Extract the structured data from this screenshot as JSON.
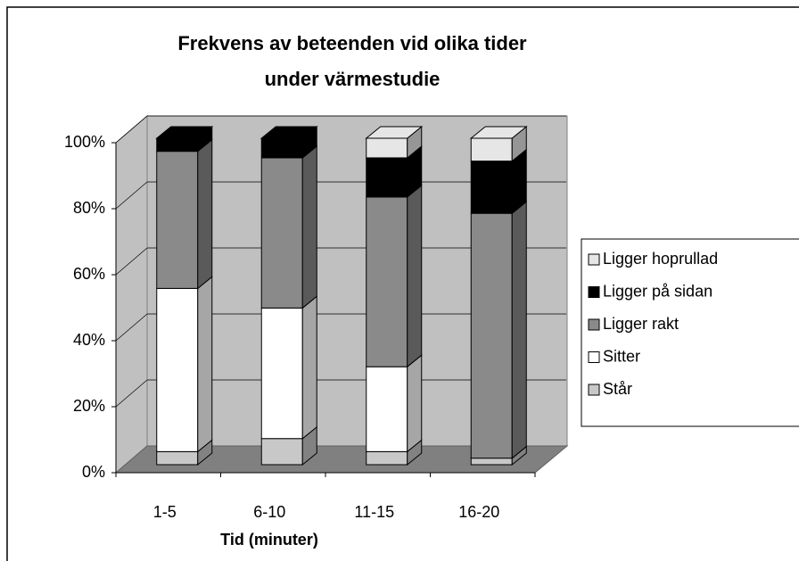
{
  "chart_data": {
    "type": "stacked_bar_3d",
    "title": [
      "Frekvens av beteenden vid olika tider",
      "under värmestudie"
    ],
    "x_label": "Tid (minuter)",
    "categories": [
      "1-5",
      "6-10",
      "11-15",
      "16-20"
    ],
    "series": [
      {
        "name": "Står",
        "color": "#c8c8c8",
        "values": [
          4,
          8,
          4,
          2
        ]
      },
      {
        "name": "Sitter",
        "color": "#ffffff",
        "values": [
          50,
          40,
          26,
          0
        ]
      },
      {
        "name": "Ligger rakt",
        "color": "#8a8a8a",
        "values": [
          42,
          46,
          52,
          75
        ]
      },
      {
        "name": "Ligger  på sidan",
        "color": "#000000",
        "values": [
          4,
          6,
          12,
          16
        ]
      },
      {
        "name": "Ligger hoprullad",
        "color": "#e6e6e6",
        "values": [
          0,
          0,
          6,
          7
        ]
      }
    ],
    "ylim": [
      0,
      100
    ],
    "yticks": [
      {
        "value": 0,
        "label": "0%"
      },
      {
        "value": 20,
        "label": "20%"
      },
      {
        "value": 40,
        "label": "40%"
      },
      {
        "value": 60,
        "label": "60%"
      },
      {
        "value": 80,
        "label": "80%"
      },
      {
        "value": 100,
        "label": "100%"
      }
    ],
    "grid": true,
    "legend": "right"
  }
}
